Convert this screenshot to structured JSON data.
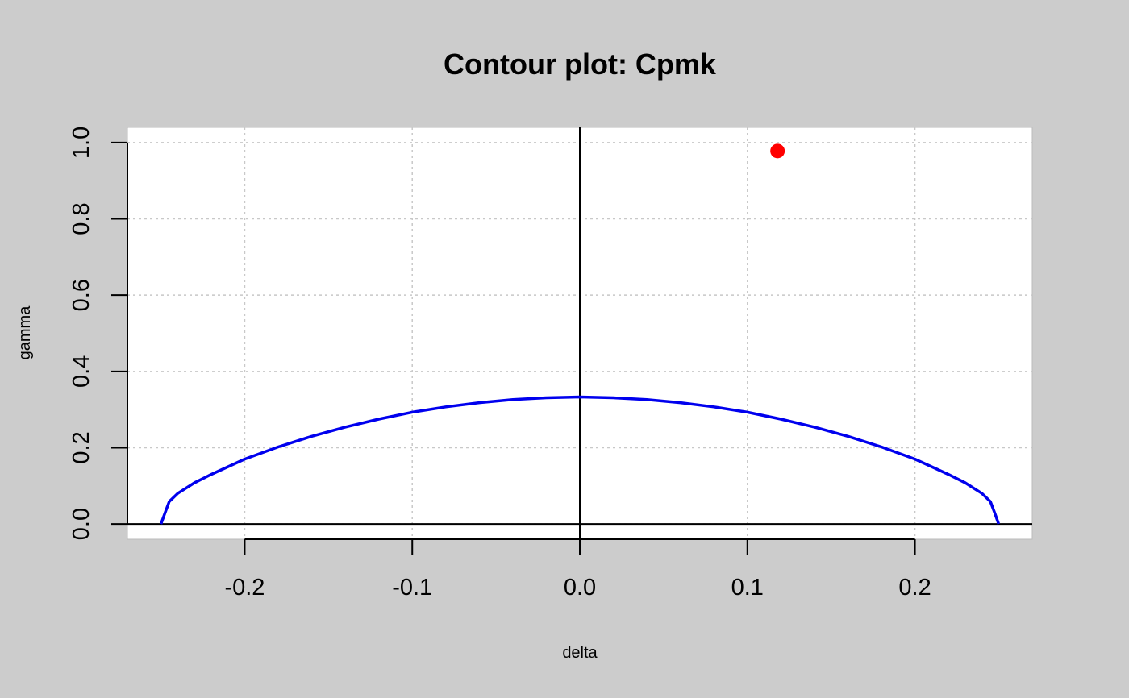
{
  "chart_data": {
    "type": "line",
    "title": "Contour plot: Cpmk",
    "xlabel": "delta",
    "ylabel": "gamma",
    "xlim": [
      -0.27,
      0.27
    ],
    "ylim": [
      -0.04,
      1.04
    ],
    "x_ticks": [
      "-0.2",
      "-0.1",
      "0.0",
      "0.1",
      "0.2"
    ],
    "x_tick_values": [
      -0.2,
      -0.1,
      0.0,
      0.1,
      0.2
    ],
    "y_ticks": [
      "0.0",
      "0.2",
      "0.4",
      "0.6",
      "0.8",
      "1.0"
    ],
    "y_tick_values": [
      0.0,
      0.2,
      0.4,
      0.6,
      0.8,
      1.0
    ],
    "grid": true,
    "series": [
      {
        "color": "#0000ee",
        "x": [
          -0.25,
          -0.2475,
          -0.245,
          -0.24,
          -0.23,
          -0.22,
          -0.2,
          -0.18,
          -0.16,
          -0.14,
          -0.12,
          -0.1,
          -0.08,
          -0.06,
          -0.04,
          -0.02,
          0.0,
          0.02,
          0.04,
          0.06,
          0.08,
          0.1,
          0.12,
          0.14,
          0.16,
          0.18,
          0.2,
          0.22,
          0.23,
          0.24,
          0.245,
          0.2475,
          0.25
        ],
        "y": [
          0.0,
          0.03,
          0.059,
          0.08,
          0.108,
          0.13,
          0.17,
          0.202,
          0.23,
          0.254,
          0.275,
          0.293,
          0.307,
          0.318,
          0.326,
          0.331,
          0.333,
          0.331,
          0.326,
          0.318,
          0.307,
          0.293,
          0.275,
          0.254,
          0.23,
          0.202,
          0.17,
          0.13,
          0.108,
          0.08,
          0.059,
          0.03,
          0.0
        ]
      }
    ],
    "points": [
      {
        "x": 0.118,
        "y": 0.978,
        "color": "#ff0000"
      }
    ],
    "reference_lines": {
      "vertical_x": 0.0,
      "horizontal_y": 0.0
    }
  }
}
